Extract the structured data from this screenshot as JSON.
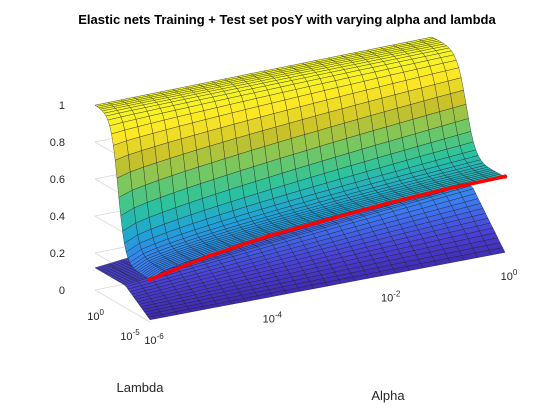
{
  "chart_data": {
    "type": "surface",
    "title": "Elastic nets Training + Test set posY with varying alpha and lambda",
    "xlabel": "Alpha",
    "ylabel": "Lambda",
    "x_scale": "log",
    "y_scale": "log",
    "x_ticks": [
      {
        "base": "10",
        "exp": "-6"
      },
      {
        "base": "10",
        "exp": "-4"
      },
      {
        "base": "10",
        "exp": "-2"
      },
      {
        "base": "10",
        "exp": "0"
      }
    ],
    "y_ticks": [
      {
        "base": "10",
        "exp": "-5"
      },
      {
        "base": "10",
        "exp": "0"
      }
    ],
    "z_ticks": [
      "0",
      "0.2",
      "0.4",
      "0.6",
      "0.8",
      "1"
    ],
    "zlim": [
      0,
      1
    ],
    "grid": true,
    "colormap": [
      "#3e26a8",
      "#4a42d6",
      "#3c7cf3",
      "#1fa2d8",
      "#2bc39e",
      "#74c862",
      "#c8c12a",
      "#fde725",
      "#f5f825"
    ],
    "highlight_color": "#ff0000",
    "series": [
      {
        "name": "",
        "surface": "upper",
        "alpha_range": [
          1e-06,
          1
        ],
        "lambda_range": [
          1e-05,
          1000
        ],
        "z_at_high_lambda": 1.0,
        "z_at_low_lambda_low_alpha": 0.23,
        "z_at_low_lambda_high_alpha": 0.44
      },
      {
        "name": "",
        "surface": "lower",
        "alpha_range": [
          1e-06,
          1
        ],
        "lambda_range": [
          1e-05,
          1000
        ],
        "z_range": [
          0.0,
          0.3
        ]
      }
    ],
    "highlight_line": {
      "lambda": 1e-05,
      "alpha": [
        1e-06,
        1e-05,
        0.0001,
        0.001,
        0.01,
        0.1,
        1
      ],
      "z": [
        0.23,
        0.3,
        0.35,
        0.38,
        0.41,
        0.43,
        0.44
      ]
    }
  }
}
